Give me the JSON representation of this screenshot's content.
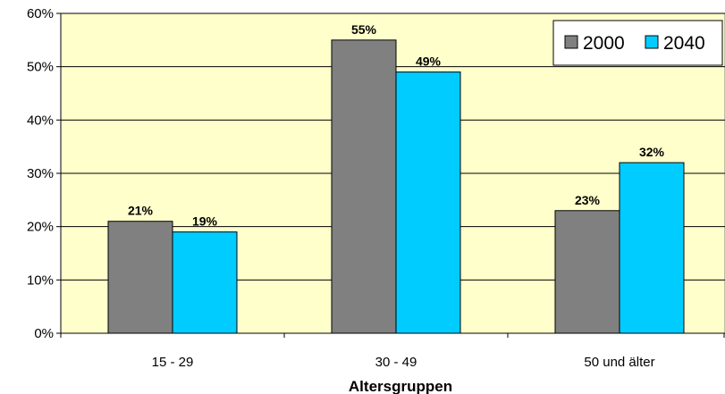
{
  "chart_data": {
    "type": "bar",
    "title": "",
    "xlabel": "Altersgruppen",
    "ylabel": "",
    "categories": [
      "15 - 29",
      "30 - 49",
      "50 und älter"
    ],
    "series": [
      {
        "name": "2000",
        "values": [
          21,
          55,
          23
        ],
        "labels": [
          "21%",
          "55%",
          "23%"
        ],
        "color": "#808080"
      },
      {
        "name": "2040",
        "values": [
          19,
          49,
          32
        ],
        "labels": [
          "19%",
          "49%",
          "32%"
        ],
        "color": "#00ccff"
      }
    ],
    "ylim": [
      0,
      60
    ],
    "yticks": [
      0,
      10,
      20,
      30,
      40,
      50,
      60
    ],
    "ytick_labels": [
      "0%",
      "10%",
      "20%",
      "30%",
      "40%",
      "50%",
      "60%"
    ],
    "grid": true,
    "legend_position": "top-right",
    "plot_background": "#ffffcc"
  }
}
